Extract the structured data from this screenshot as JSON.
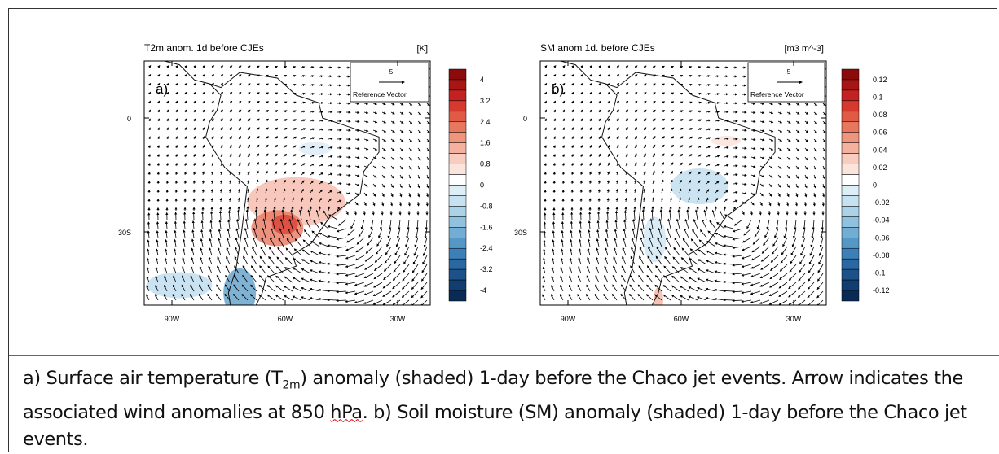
{
  "panels": [
    {
      "label": "a)",
      "title": "T2m anom. 1d before CJEs",
      "units": "[K]",
      "reference": {
        "value": "5",
        "label": "Reference Vector"
      },
      "y_labels": [
        "0",
        "30S"
      ],
      "x_labels": [
        "90W",
        "60W",
        "30W"
      ],
      "colorbar": [
        "4",
        "3.2",
        "2.4",
        "1.6",
        "0.8",
        "0",
        "-0.8",
        "-1.6",
        "-2.4",
        "-3.2",
        "-4"
      ]
    },
    {
      "label": "b)",
      "title": "SM anom 1d. before CJEs",
      "units": "[m3 m^-3]",
      "reference": {
        "value": "5",
        "label": "Reference Vector"
      },
      "y_labels": [
        "0",
        "30S"
      ],
      "x_labels": [
        "90W",
        "60W",
        "30W"
      ],
      "colorbar": [
        "0.12",
        "0.1",
        "0.08",
        "0.06",
        "0.04",
        "0.02",
        "0",
        "-0.02",
        "-0.04",
        "-0.06",
        "-0.08",
        "-0.1",
        "-0.12"
      ]
    }
  ],
  "caption": {
    "parts": [
      "a) Surface air temperature (T",
      "2m",
      ") anomaly (shaded) 1-day before the Chaco jet events. Arrow indicates the associated wind anomalies at 850 ",
      "hPa",
      ". b) Soil moisture (SM) anomaly (shaded) 1-day before the Chaco jet events."
    ]
  }
}
